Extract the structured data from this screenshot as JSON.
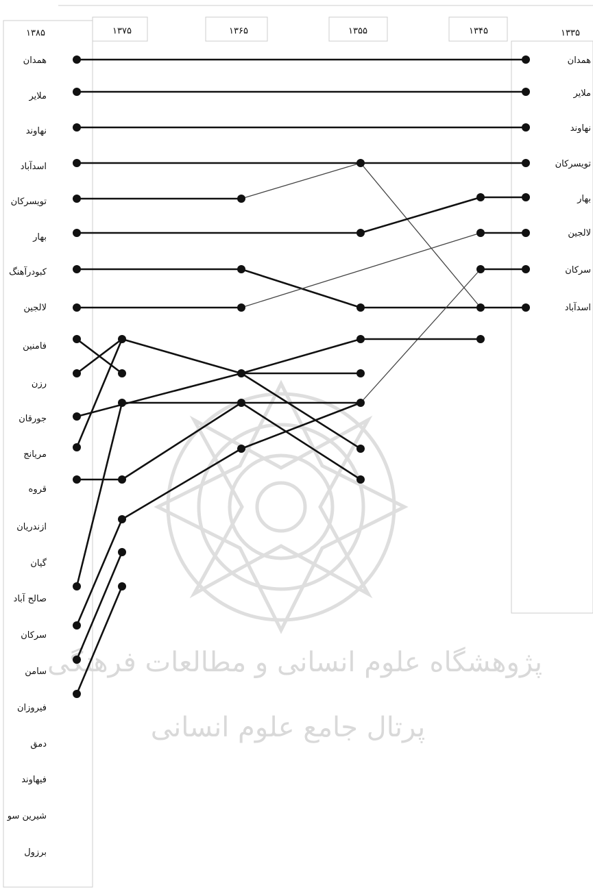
{
  "years": [
    "۱۳۸۵",
    "۱۳۷۵",
    "۱۳۶۵",
    "۱۳۵۵",
    "۱۳۴۵",
    "۱۳۳۵"
  ],
  "left_names": [
    "همدان",
    "ملایر",
    "نهاوند",
    "اسدآباد",
    "تویسرکان",
    "بهار",
    "کبودرآهنگ",
    "لالجین",
    "فامنین",
    "رزن",
    "جورقان",
    "مریانج",
    "قروه",
    "ازندریان",
    "گیان",
    "صالح آباد",
    "سرکان",
    "سامن",
    "فیروزان",
    "دمق",
    "فیهاوند",
    "شیرین سو",
    "برزول"
  ],
  "right_names": [
    "همدان",
    "ملایر",
    "نهاوند",
    "تویسرکان",
    "بهار",
    "لالجین",
    "سرکان",
    "اسدآباد"
  ],
  "watermark": {
    "line1": "پژوهشگاه علوم انسانی و مطالعات فرهنگی",
    "line2": "پرتال جامع علوم انسانی"
  },
  "colors": {
    "line": "#111111",
    "thin": "#444444",
    "box": "#cccccc",
    "watermark": "#d9d9d9"
  }
}
